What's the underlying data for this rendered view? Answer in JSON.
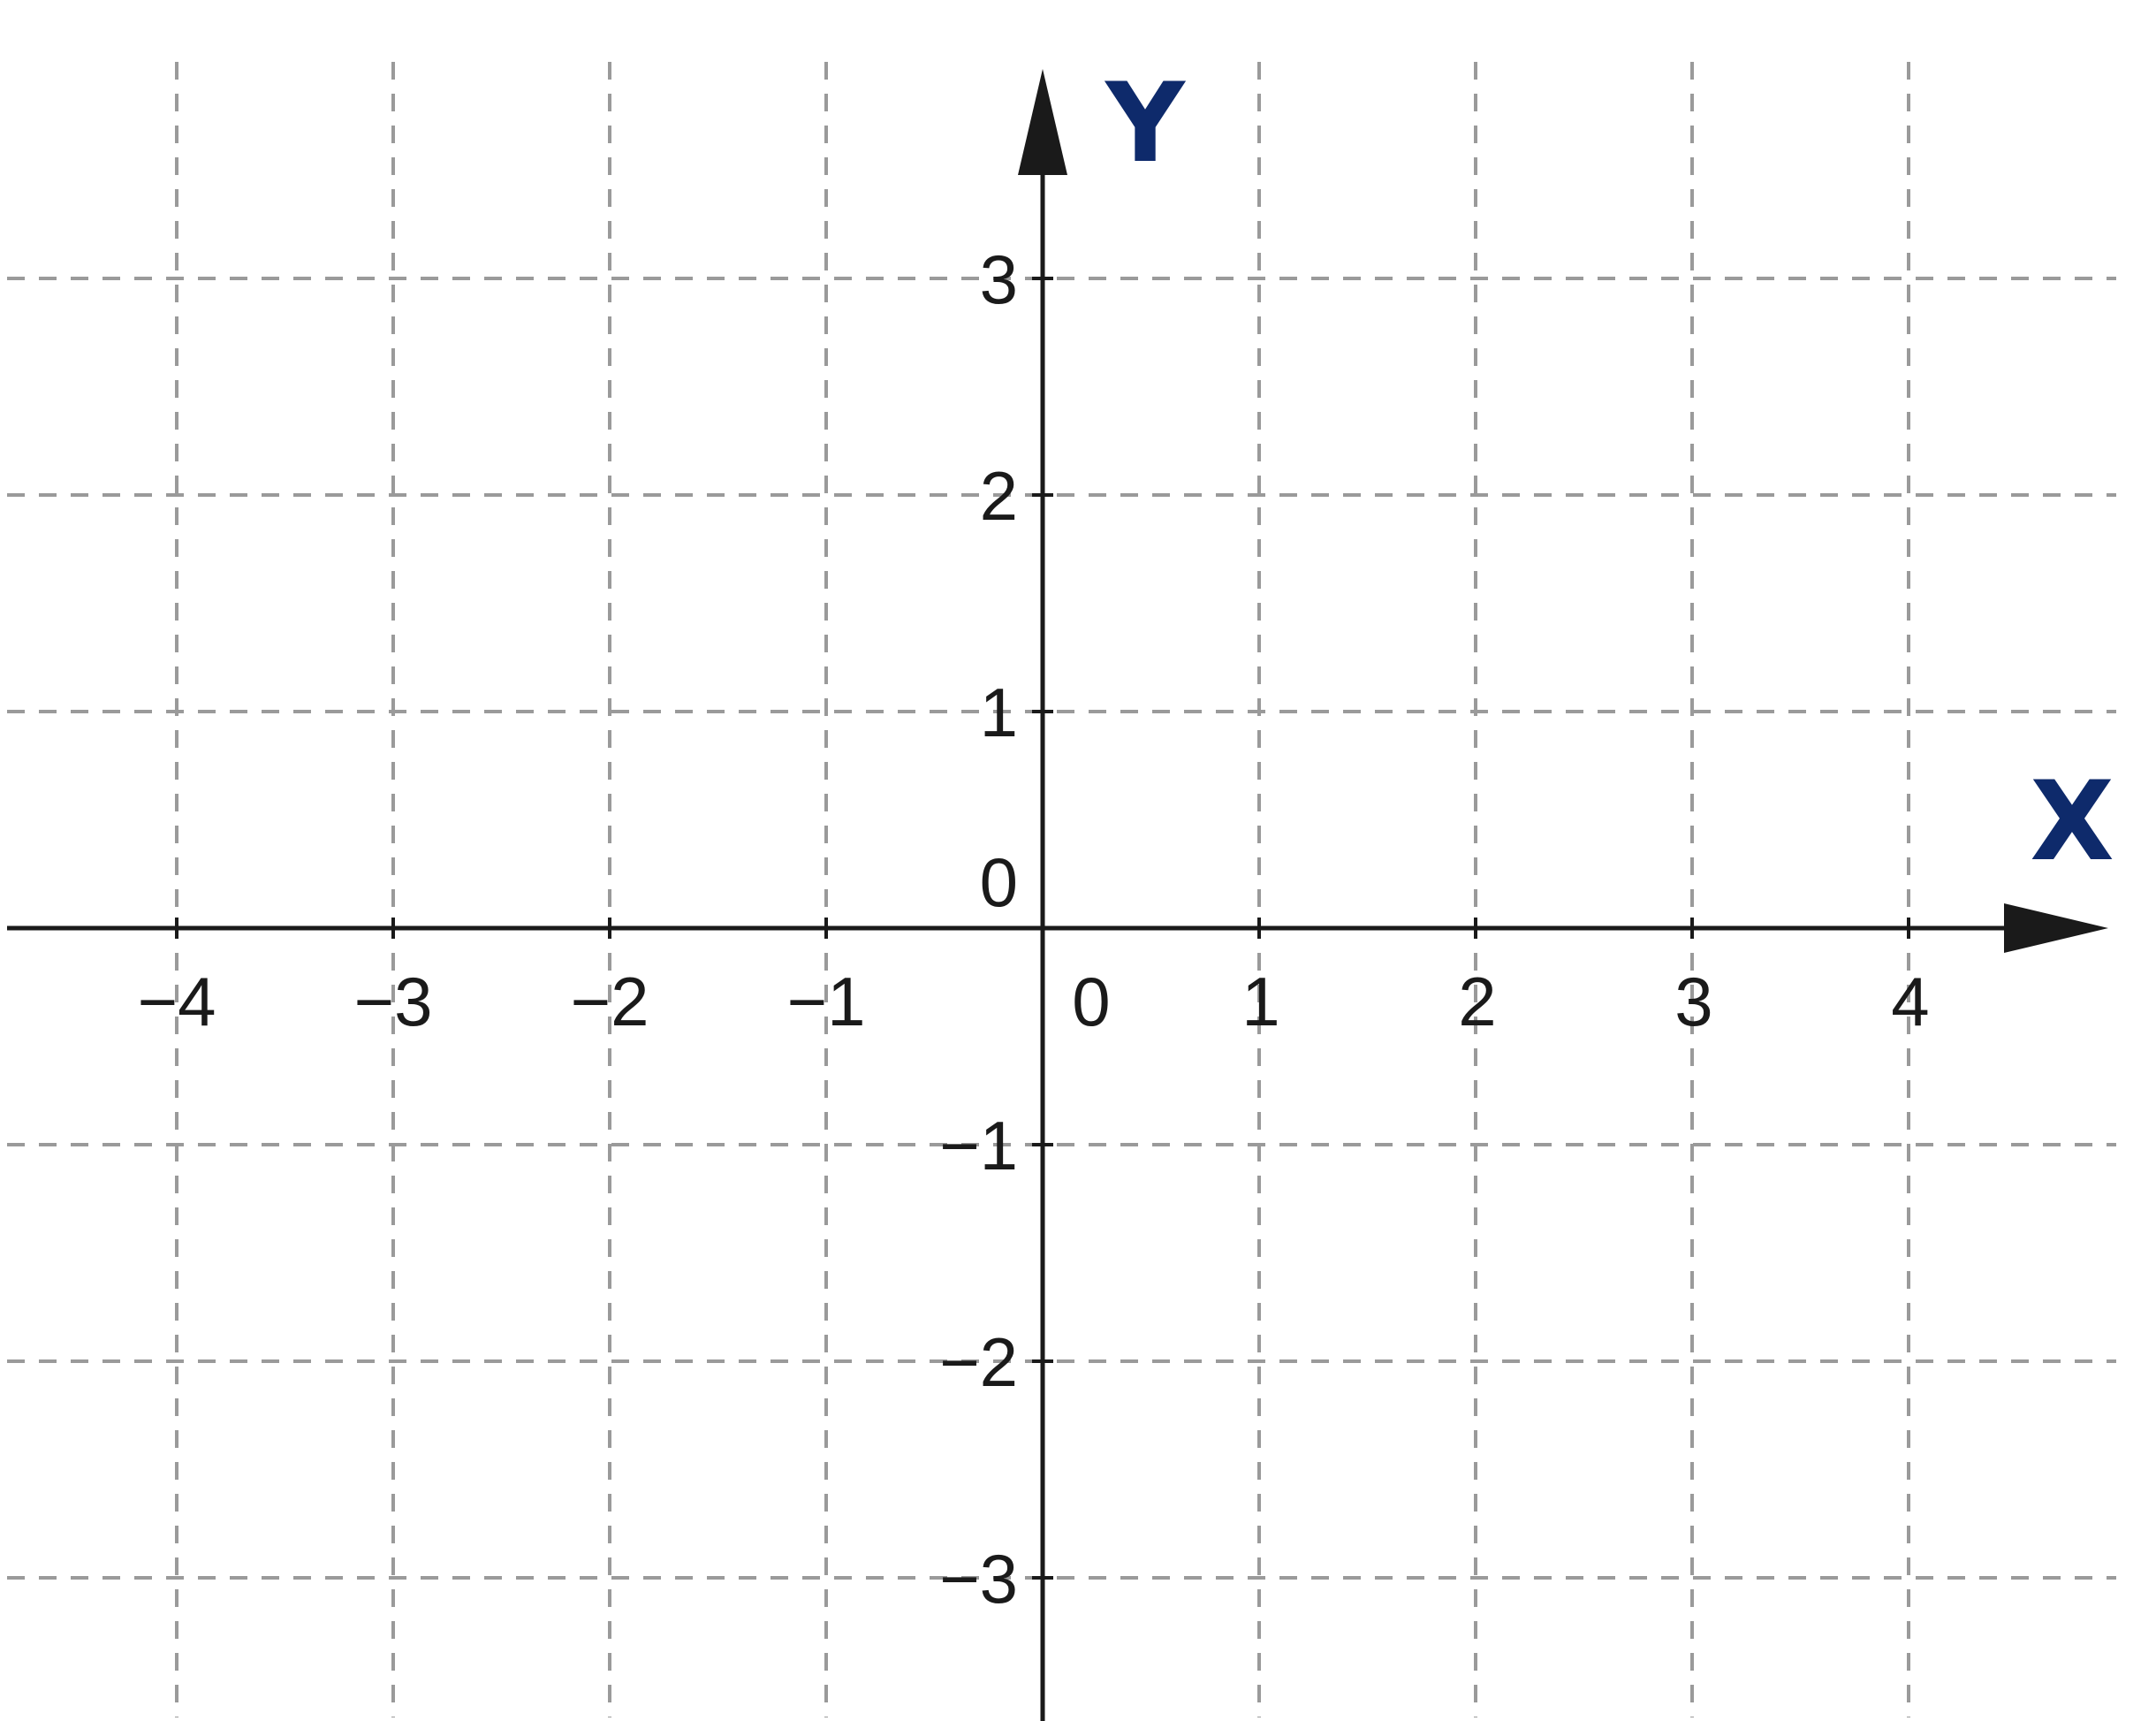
{
  "chart_data": {
    "type": "scatter",
    "title": "",
    "xlabel": "X",
    "ylabel": "Y",
    "xlim": [
      -4.8,
      4.9
    ],
    "ylim": [
      -3.6,
      3.9
    ],
    "x_ticks": [
      -4,
      -3,
      -2,
      -1,
      0,
      1,
      2,
      3,
      4
    ],
    "y_ticks": [
      -3,
      -2,
      -1,
      0,
      1,
      2,
      3
    ],
    "x_tick_labels": [
      "−4",
      "−3",
      "−2",
      "−1",
      "0",
      "1",
      "2",
      "3",
      "4"
    ],
    "y_tick_labels": [
      "−3",
      "−2",
      "−1",
      "0",
      "1",
      "2",
      "3"
    ],
    "grid": true,
    "grid_style": "dashed",
    "series": []
  },
  "colors": {
    "axis": "#1a1a1a",
    "grid": "#9a9a9a",
    "axis_label": "#0e2a6b"
  }
}
